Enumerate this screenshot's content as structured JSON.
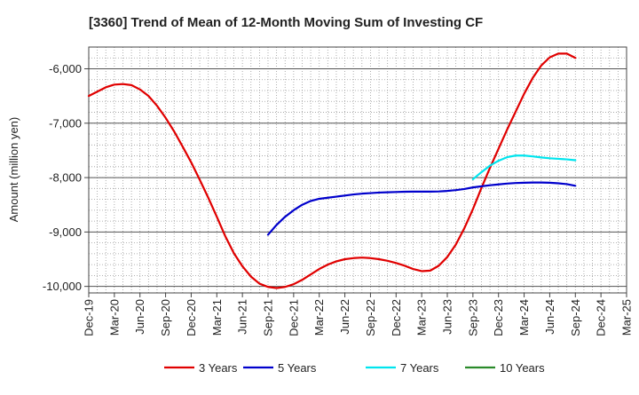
{
  "chart_data": {
    "type": "line",
    "title": "[3360]  Trend of Mean of 12-Month Moving Sum of Investing CF",
    "xlabel": "",
    "ylabel": "Amount (million yen)",
    "ylim": [
      -10120,
      -5600
    ],
    "yticks": [
      -6000,
      -7000,
      -8000,
      -9000,
      -10000
    ],
    "ytick_labels": [
      "-6,000",
      "-7,000",
      "-8,000",
      "-9,000",
      "-10,000"
    ],
    "x_categories": [
      "Dec-19",
      "Mar-20",
      "Jun-20",
      "Sep-20",
      "Dec-20",
      "Mar-21",
      "Jun-21",
      "Sep-21",
      "Dec-21",
      "Mar-22",
      "Jun-22",
      "Sep-22",
      "Dec-22",
      "Mar-23",
      "Jun-23",
      "Sep-23",
      "Dec-23",
      "Mar-24",
      "Jun-24",
      "Sep-24",
      "Dec-24",
      "Mar-25"
    ],
    "grid": true,
    "legend_position": "bottom",
    "series": [
      {
        "name": "3 Years",
        "color": "#e00000",
        "points": [
          [
            "Dec-19",
            -6500
          ],
          [
            "Jan-20",
            -6420
          ],
          [
            "Feb-20",
            -6340
          ],
          [
            "Mar-20",
            -6290
          ],
          [
            "Apr-20",
            -6280
          ],
          [
            "May-20",
            -6300
          ],
          [
            "Jun-20",
            -6380
          ],
          [
            "Jul-20",
            -6500
          ],
          [
            "Aug-20",
            -6680
          ],
          [
            "Sep-20",
            -6900
          ],
          [
            "Oct-20",
            -7150
          ],
          [
            "Nov-20",
            -7430
          ],
          [
            "Dec-20",
            -7720
          ],
          [
            "Jan-21",
            -8040
          ],
          [
            "Feb-21",
            -8370
          ],
          [
            "Mar-21",
            -8720
          ],
          [
            "Apr-21",
            -9080
          ],
          [
            "May-21",
            -9390
          ],
          [
            "Jun-21",
            -9630
          ],
          [
            "Jul-21",
            -9820
          ],
          [
            "Aug-21",
            -9950
          ],
          [
            "Sep-21",
            -10010
          ],
          [
            "Oct-21",
            -10030
          ],
          [
            "Nov-21",
            -10010
          ],
          [
            "Dec-21",
            -9960
          ],
          [
            "Jan-22",
            -9880
          ],
          [
            "Feb-22",
            -9780
          ],
          [
            "Mar-22",
            -9680
          ],
          [
            "Apr-22",
            -9600
          ],
          [
            "May-22",
            -9540
          ],
          [
            "Jun-22",
            -9500
          ],
          [
            "Jul-22",
            -9480
          ],
          [
            "Aug-22",
            -9470
          ],
          [
            "Sep-22",
            -9480
          ],
          [
            "Oct-22",
            -9500
          ],
          [
            "Nov-22",
            -9530
          ],
          [
            "Dec-22",
            -9570
          ],
          [
            "Jan-23",
            -9620
          ],
          [
            "Feb-23",
            -9680
          ],
          [
            "Mar-23",
            -9720
          ],
          [
            "Apr-23",
            -9710
          ],
          [
            "May-23",
            -9620
          ],
          [
            "Jun-23",
            -9460
          ],
          [
            "Jul-23",
            -9230
          ],
          [
            "Aug-23",
            -8930
          ],
          [
            "Sep-23",
            -8580
          ],
          [
            "Oct-23",
            -8190
          ],
          [
            "Nov-23",
            -7820
          ],
          [
            "Dec-23",
            -7470
          ],
          [
            "Jan-24",
            -7120
          ],
          [
            "Feb-24",
            -6790
          ],
          [
            "Mar-24",
            -6460
          ],
          [
            "Apr-24",
            -6170
          ],
          [
            "May-24",
            -5940
          ],
          [
            "Jun-24",
            -5790
          ],
          [
            "Jul-24",
            -5720
          ],
          [
            "Aug-24",
            -5720
          ],
          [
            "Sep-24",
            -5800
          ]
        ]
      },
      {
        "name": "5 Years",
        "color": "#0000cc",
        "points": [
          [
            "Sep-21",
            -9050
          ],
          [
            "Oct-21",
            -8870
          ],
          [
            "Nov-21",
            -8720
          ],
          [
            "Dec-21",
            -8600
          ],
          [
            "Jan-22",
            -8500
          ],
          [
            "Feb-22",
            -8430
          ],
          [
            "Mar-22",
            -8390
          ],
          [
            "Apr-22",
            -8370
          ],
          [
            "May-22",
            -8350
          ],
          [
            "Jun-22",
            -8330
          ],
          [
            "Jul-22",
            -8310
          ],
          [
            "Aug-22",
            -8295
          ],
          [
            "Sep-22",
            -8285
          ],
          [
            "Oct-22",
            -8275
          ],
          [
            "Nov-22",
            -8270
          ],
          [
            "Dec-22",
            -8265
          ],
          [
            "Jan-23",
            -8260
          ],
          [
            "Feb-23",
            -8258
          ],
          [
            "Mar-23",
            -8258
          ],
          [
            "Apr-23",
            -8258
          ],
          [
            "May-23",
            -8255
          ],
          [
            "Jun-23",
            -8245
          ],
          [
            "Jul-23",
            -8230
          ],
          [
            "Aug-23",
            -8210
          ],
          [
            "Sep-23",
            -8180
          ],
          [
            "Oct-23",
            -8160
          ],
          [
            "Nov-23",
            -8140
          ],
          [
            "Dec-23",
            -8125
          ],
          [
            "Jan-24",
            -8110
          ],
          [
            "Feb-24",
            -8100
          ],
          [
            "Mar-24",
            -8095
          ],
          [
            "Apr-24",
            -8090
          ],
          [
            "May-24",
            -8090
          ],
          [
            "Jun-24",
            -8095
          ],
          [
            "Jul-24",
            -8105
          ],
          [
            "Aug-24",
            -8120
          ],
          [
            "Sep-24",
            -8150
          ]
        ]
      },
      {
        "name": "7 Years",
        "color": "#00e5ee",
        "points": [
          [
            "Sep-23",
            -8030
          ],
          [
            "Oct-23",
            -7900
          ],
          [
            "Nov-23",
            -7780
          ],
          [
            "Dec-23",
            -7690
          ],
          [
            "Jan-24",
            -7625
          ],
          [
            "Feb-24",
            -7595
          ],
          [
            "Mar-24",
            -7595
          ],
          [
            "Apr-24",
            -7610
          ],
          [
            "May-24",
            -7630
          ],
          [
            "Jun-24",
            -7645
          ],
          [
            "Jul-24",
            -7655
          ],
          [
            "Aug-24",
            -7665
          ],
          [
            "Sep-24",
            -7680
          ]
        ]
      },
      {
        "name": "10 Years",
        "color": "#2a8a2a",
        "points": []
      }
    ]
  }
}
